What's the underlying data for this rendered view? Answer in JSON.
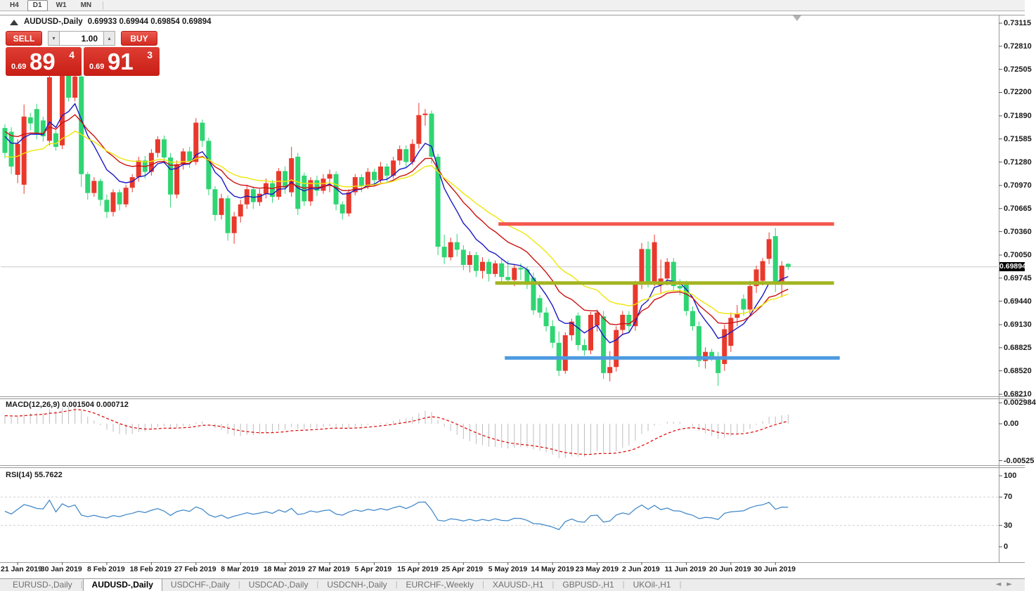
{
  "toolbar": {
    "timeframes": [
      "H4",
      "D1",
      "W1",
      "MN"
    ],
    "active": "D1"
  },
  "header": {
    "symbol": "AUDUSD-,Daily",
    "ohlc": "0.69933 0.69944 0.69854 0.69894"
  },
  "trade_panel": {
    "sell_label": "SELL",
    "buy_label": "BUY",
    "volume": "1.00",
    "sell_price_small": "0.69",
    "sell_price_big": "89",
    "sell_price_sup": "4",
    "buy_price_small": "0.69",
    "buy_price_big": "91",
    "buy_price_sup": "3"
  },
  "price_axis": {
    "labels": [
      "0.73115",
      "0.72810",
      "0.72505",
      "0.72200",
      "0.71890",
      "0.71585",
      "0.71280",
      "0.70970",
      "0.70665",
      "0.70360",
      "0.70050",
      "0.69745",
      "0.69440",
      "0.69130",
      "0.68825",
      "0.68520",
      "0.68210"
    ],
    "current": "0.69894"
  },
  "macd_panel": {
    "label": "MACD(12,26,9) 0.001504 0.000712",
    "axis": [
      "0.002984",
      "0.00",
      "-0.00525"
    ],
    "axis_values": [
      0.002984,
      0,
      -0.00525
    ]
  },
  "rsi_panel": {
    "label": "RSI(14) 55.7622",
    "axis": [
      "100",
      "70",
      "30",
      "0"
    ],
    "axis_values": [
      100,
      70,
      30,
      0
    ],
    "levels": [
      70,
      30
    ]
  },
  "tabs": [
    {
      "label": "EURUSD-,Daily",
      "active": false
    },
    {
      "label": "AUDUSD-,Daily",
      "active": true
    },
    {
      "label": "USDCHF-,Daily",
      "active": false
    },
    {
      "label": "USDCAD-,Daily",
      "active": false
    },
    {
      "label": "USDCNH-,Daily",
      "active": false
    },
    {
      "label": "EURCHF-,Weekly",
      "active": false
    },
    {
      "label": "XAUUSD-,H1",
      "active": false
    },
    {
      "label": "GBPUSD-,H1",
      "active": false
    },
    {
      "label": "UKOil-,H1",
      "active": false
    }
  ],
  "colors": {
    "bull_candle": "#e8392c",
    "bear_candle": "#2fd573",
    "ma_fast": "#1a17c4",
    "ma_mid": "#cc1111",
    "ma_slow": "#efe60a",
    "hline_resistance": "#f4564d",
    "hline_pivot": "#a4b521",
    "hline_support": "#4e9be0",
    "bid_line": "#c9c9c9",
    "macd_hist": "#bdbdbd",
    "macd_signal": "#dd0000",
    "rsi_line": "#3d86c8"
  },
  "chart_data": {
    "type": "candlestick",
    "symbol": "AUDUSD",
    "timeframe": "Daily",
    "title": "AUDUSD-,Daily",
    "ylim": [
      0.6821,
      0.73115
    ],
    "current_price": 0.69894,
    "x_labels": [
      "21 Jan 2019",
      "30 Jan 2019",
      "8 Feb 2019",
      "18 Feb 2019",
      "27 Feb 2019",
      "8 Mar 2019",
      "18 Mar 2019",
      "27 Mar 2019",
      "5 Apr 2019",
      "15 Apr 2019",
      "25 Apr 2019",
      "5 May 2019",
      "14 May 2019",
      "23 May 2019",
      "2 Jun 2019",
      "11 Jun 2019",
      "20 Jun 2019",
      "30 Jun 2019"
    ],
    "x_label_first_bar": 2,
    "x_label_step": 7,
    "candles_ohlc": [
      [
        0.7173,
        0.7178,
        0.7133,
        0.714
      ],
      [
        0.7168,
        0.7174,
        0.7112,
        0.7122
      ],
      [
        0.7111,
        0.7158,
        0.71,
        0.7152
      ],
      [
        0.7098,
        0.7204,
        0.7086,
        0.7188
      ],
      [
        0.7187,
        0.7193,
        0.717,
        0.7179
      ],
      [
        0.7198,
        0.7205,
        0.7158,
        0.7165
      ],
      [
        0.7183,
        0.7188,
        0.7155,
        0.7162
      ],
      [
        0.7156,
        0.7242,
        0.715,
        0.724
      ],
      [
        0.7166,
        0.717,
        0.7143,
        0.7148
      ],
      [
        0.715,
        0.7252,
        0.7145,
        0.7245
      ],
      [
        0.7245,
        0.7252,
        0.7208,
        0.7213
      ],
      [
        0.7213,
        0.726,
        0.7208,
        0.7241
      ],
      [
        0.7241,
        0.7248,
        0.7095,
        0.7112
      ],
      [
        0.7112,
        0.7115,
        0.7078,
        0.7087
      ],
      [
        0.7087,
        0.7108,
        0.7082,
        0.7103
      ],
      [
        0.7103,
        0.7106,
        0.707,
        0.7078
      ],
      [
        0.7078,
        0.7085,
        0.7054,
        0.7062
      ],
      [
        0.7062,
        0.7092,
        0.7056,
        0.7088
      ],
      [
        0.7088,
        0.7092,
        0.7064,
        0.7072
      ],
      [
        0.7072,
        0.7098,
        0.7068,
        0.7094
      ],
      [
        0.7094,
        0.7112,
        0.7088,
        0.7108
      ],
      [
        0.7108,
        0.7135,
        0.7102,
        0.713
      ],
      [
        0.713,
        0.7136,
        0.7106,
        0.7115
      ],
      [
        0.7115,
        0.7145,
        0.711,
        0.714
      ],
      [
        0.714,
        0.7162,
        0.7134,
        0.7158
      ],
      [
        0.7158,
        0.7163,
        0.7126,
        0.7134
      ],
      [
        0.7134,
        0.714,
        0.7068,
        0.7085
      ],
      [
        0.7085,
        0.713,
        0.708,
        0.7125
      ],
      [
        0.7125,
        0.7146,
        0.7118,
        0.7142
      ],
      [
        0.7142,
        0.7148,
        0.712,
        0.7128
      ],
      [
        0.7128,
        0.7186,
        0.7124,
        0.718
      ],
      [
        0.718,
        0.7184,
        0.7148,
        0.7156
      ],
      [
        0.7156,
        0.716,
        0.7084,
        0.7092
      ],
      [
        0.7092,
        0.7096,
        0.705,
        0.7058
      ],
      [
        0.7058,
        0.7086,
        0.7052,
        0.708
      ],
      [
        0.708,
        0.7084,
        0.7024,
        0.7034
      ],
      [
        0.7034,
        0.7062,
        0.702,
        0.7056
      ],
      [
        0.7056,
        0.7078,
        0.7048,
        0.7072
      ],
      [
        0.7072,
        0.7098,
        0.7066,
        0.7092
      ],
      [
        0.7092,
        0.7096,
        0.7066,
        0.7075
      ],
      [
        0.7075,
        0.7092,
        0.707,
        0.7086
      ],
      [
        0.7086,
        0.7106,
        0.708,
        0.71
      ],
      [
        0.71,
        0.7104,
        0.7074,
        0.7082
      ],
      [
        0.7082,
        0.712,
        0.7078,
        0.7116
      ],
      [
        0.7116,
        0.7122,
        0.7086,
        0.7094
      ],
      [
        0.7088,
        0.7148,
        0.7082,
        0.7133
      ],
      [
        0.7135,
        0.714,
        0.7058,
        0.7066
      ],
      [
        0.711,
        0.7114,
        0.707,
        0.7076
      ],
      [
        0.7076,
        0.7108,
        0.707,
        0.7104
      ],
      [
        0.7104,
        0.711,
        0.7083,
        0.709
      ],
      [
        0.709,
        0.7112,
        0.7086,
        0.7106
      ],
      [
        0.7106,
        0.7118,
        0.7088,
        0.7112
      ],
      [
        0.7112,
        0.7116,
        0.7064,
        0.7072
      ],
      [
        0.7072,
        0.7076,
        0.7052,
        0.706
      ],
      [
        0.706,
        0.7092,
        0.7056,
        0.7088
      ],
      [
        0.7088,
        0.7112,
        0.7084,
        0.7108
      ],
      [
        0.7108,
        0.7112,
        0.7088,
        0.7096
      ],
      [
        0.7096,
        0.712,
        0.7092,
        0.7115
      ],
      [
        0.7115,
        0.7119,
        0.7096,
        0.7104
      ],
      [
        0.7104,
        0.7128,
        0.71,
        0.7122
      ],
      [
        0.7122,
        0.7126,
        0.7102,
        0.711
      ],
      [
        0.711,
        0.7135,
        0.7106,
        0.713
      ],
      [
        0.713,
        0.715,
        0.7124,
        0.7145
      ],
      [
        0.7145,
        0.715,
        0.712,
        0.7128
      ],
      [
        0.7128,
        0.7158,
        0.7124,
        0.7152
      ],
      [
        0.7152,
        0.7206,
        0.7146,
        0.719
      ],
      [
        0.719,
        0.7198,
        0.7176,
        0.7192
      ],
      [
        0.7192,
        0.7196,
        0.7126,
        0.7135
      ],
      [
        0.7135,
        0.7139,
        0.7005,
        0.7016
      ],
      [
        0.7016,
        0.7032,
        0.6993,
        0.7002
      ],
      [
        0.7002,
        0.7028,
        0.6998,
        0.7022
      ],
      [
        0.7022,
        0.7033,
        0.7003,
        0.7012
      ],
      [
        0.7012,
        0.7018,
        0.6985,
        0.6992
      ],
      [
        0.6992,
        0.701,
        0.6982,
        0.7005
      ],
      [
        0.7005,
        0.7009,
        0.6976,
        0.6984
      ],
      [
        0.6984,
        0.7002,
        0.6974,
        0.6996
      ],
      [
        0.6996,
        0.7,
        0.697,
        0.698
      ],
      [
        0.698,
        0.6998,
        0.6976,
        0.6994
      ],
      [
        0.6994,
        0.6999,
        0.6968,
        0.6976
      ],
      [
        0.6976,
        0.6998,
        0.6966,
        0.6972
      ],
      [
        0.6972,
        0.6992,
        0.6964,
        0.6988
      ],
      [
        0.6988,
        0.6994,
        0.6972,
        0.6986
      ],
      [
        0.6986,
        0.699,
        0.696,
        0.6968
      ],
      [
        0.6975,
        0.6982,
        0.6926,
        0.6932
      ],
      [
        0.6948,
        0.6952,
        0.6922,
        0.6929
      ],
      [
        0.6929,
        0.6936,
        0.6904,
        0.6911
      ],
      [
        0.6911,
        0.6919,
        0.6882,
        0.6889
      ],
      [
        0.6889,
        0.6904,
        0.6845,
        0.6852
      ],
      [
        0.6852,
        0.6903,
        0.6848,
        0.6899
      ],
      [
        0.6899,
        0.6921,
        0.6892,
        0.6917
      ],
      [
        0.6925,
        0.6929,
        0.6879,
        0.6886
      ],
      [
        0.6886,
        0.6894,
        0.6872,
        0.6879
      ],
      [
        0.6879,
        0.693,
        0.6874,
        0.6926
      ],
      [
        0.6912,
        0.6933,
        0.6904,
        0.6929
      ],
      [
        0.6924,
        0.6931,
        0.6841,
        0.6849
      ],
      [
        0.6849,
        0.6878,
        0.6838,
        0.6857
      ],
      [
        0.6857,
        0.6911,
        0.6851,
        0.6906
      ],
      [
        0.6906,
        0.6931,
        0.6899,
        0.6926
      ],
      [
        0.6926,
        0.6931,
        0.6902,
        0.6911
      ],
      [
        0.6911,
        0.6971,
        0.6905,
        0.6966
      ],
      [
        0.6966,
        0.7021,
        0.696,
        0.7013
      ],
      [
        0.7013,
        0.7023,
        0.6962,
        0.697
      ],
      [
        0.697,
        0.7032,
        0.6964,
        0.7022
      ],
      [
        0.6965,
        0.6999,
        0.6955,
        0.6974
      ],
      [
        0.6974,
        0.7001,
        0.6965,
        0.6996
      ],
      [
        0.6996,
        0.7001,
        0.6957,
        0.6964
      ],
      [
        0.6964,
        0.6973,
        0.6952,
        0.6961
      ],
      [
        0.6967,
        0.6971,
        0.6925,
        0.6931
      ],
      [
        0.6931,
        0.6937,
        0.6905,
        0.6911
      ],
      [
        0.6911,
        0.6917,
        0.6857,
        0.6865
      ],
      [
        0.6865,
        0.6883,
        0.6855,
        0.6877
      ],
      [
        0.6877,
        0.6881,
        0.6865,
        0.6871
      ],
      [
        0.6871,
        0.6877,
        0.6832,
        0.6849
      ],
      [
        0.6861,
        0.6913,
        0.6852,
        0.6907
      ],
      [
        0.6885,
        0.6929,
        0.6877,
        0.6922
      ],
      [
        0.6922,
        0.6939,
        0.6911,
        0.6928
      ],
      [
        0.6947,
        0.6953,
        0.6925,
        0.6933
      ],
      [
        0.6933,
        0.6971,
        0.6927,
        0.6964
      ],
      [
        0.6964,
        0.6991,
        0.6955,
        0.6986
      ],
      [
        0.6971,
        0.7001,
        0.6965,
        0.6997
      ],
      [
        0.7,
        0.7035,
        0.6993,
        0.7026
      ],
      [
        0.703,
        0.7041,
        0.6956,
        0.6967
      ],
      [
        0.6967,
        0.6997,
        0.6949,
        0.6991
      ],
      [
        0.69933,
        0.69944,
        0.69854,
        0.69894
      ]
    ],
    "overlays": [
      {
        "name": "ma-fast",
        "type": "ema",
        "period": 8,
        "seed": 0.7168,
        "color_key": "ma_fast"
      },
      {
        "name": "ma-mid",
        "type": "ema",
        "period": 16,
        "seed": 0.7172,
        "color_key": "ma_mid"
      },
      {
        "name": "ma-slow",
        "type": "ema",
        "period": 26,
        "seed": 0.7135,
        "color_key": "ma_slow"
      }
    ],
    "hlines": [
      {
        "name": "resistance-line",
        "price": 0.7046,
        "bar_start": 77.5,
        "bar_end": 130.2,
        "color_key": "hline_resistance"
      },
      {
        "name": "pivot-line",
        "price": 0.6968,
        "bar_start": 77.0,
        "bar_end": 130.2,
        "color_key": "hline_pivot"
      },
      {
        "name": "support-line",
        "price": 0.6869,
        "bar_start": 78.5,
        "bar_end": 131.1,
        "color_key": "hline_support"
      }
    ],
    "indicators": [
      {
        "name": "MACD",
        "params": [
          12,
          26,
          9
        ],
        "current": [
          0.001504,
          0.000712
        ]
      },
      {
        "name": "RSI",
        "params": [
          14
        ],
        "current": 55.7622
      }
    ]
  }
}
